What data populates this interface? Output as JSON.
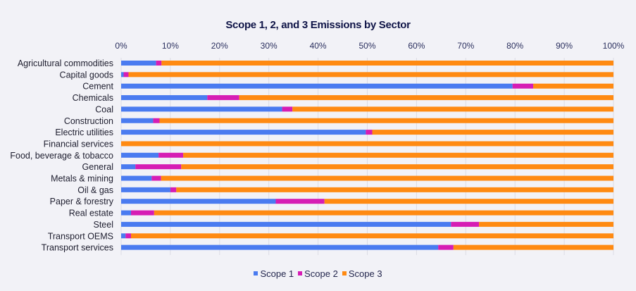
{
  "chart_data": {
    "type": "bar",
    "orientation": "horizontal",
    "stacked": true,
    "title": "Scope 1, 2, and 3 Emissions by Sector",
    "xlabel": "",
    "ylabel": "",
    "xlim": [
      0,
      100
    ],
    "x_ticks": [
      "0%",
      "10%",
      "20%",
      "30%",
      "40%",
      "50%",
      "60%",
      "70%",
      "80%",
      "90%",
      "100%"
    ],
    "x_axis_position": "top",
    "grid": true,
    "legend_position": "bottom",
    "categories": [
      "Agricultural commodities",
      "Capital goods",
      "Cement",
      "Chemicals",
      "Coal",
      "Construction",
      "Electric utilities",
      "Financial services",
      "Food, beverage & tobacco",
      "General",
      "Metals & mining",
      "Oil & gas",
      "Paper & forestry",
      "Real estate",
      "Steel",
      "Transport OEMS",
      "Transport services"
    ],
    "series": [
      {
        "name": "Scope 1",
        "color": "#4a7bf0",
        "values": [
          7.1,
          0.5,
          79.5,
          17.5,
          32.7,
          6.5,
          49.7,
          0.0,
          7.6,
          2.9,
          6.2,
          10.0,
          31.4,
          2.0,
          67.0,
          0.9,
          64.4
        ]
      },
      {
        "name": "Scope 2",
        "color": "#d61db4",
        "values": [
          1.1,
          1.0,
          4.2,
          6.5,
          2.1,
          1.3,
          1.3,
          0.0,
          5.0,
          9.3,
          1.9,
          1.2,
          9.9,
          4.7,
          5.7,
          1.1,
          3.1
        ]
      },
      {
        "name": "Scope 3",
        "color": "#ff8a12",
        "values": [
          91.8,
          98.5,
          16.3,
          76.0,
          65.2,
          92.2,
          49.0,
          100.0,
          87.4,
          87.8,
          91.9,
          88.8,
          58.7,
          93.3,
          27.3,
          98.0,
          32.5
        ]
      }
    ]
  }
}
